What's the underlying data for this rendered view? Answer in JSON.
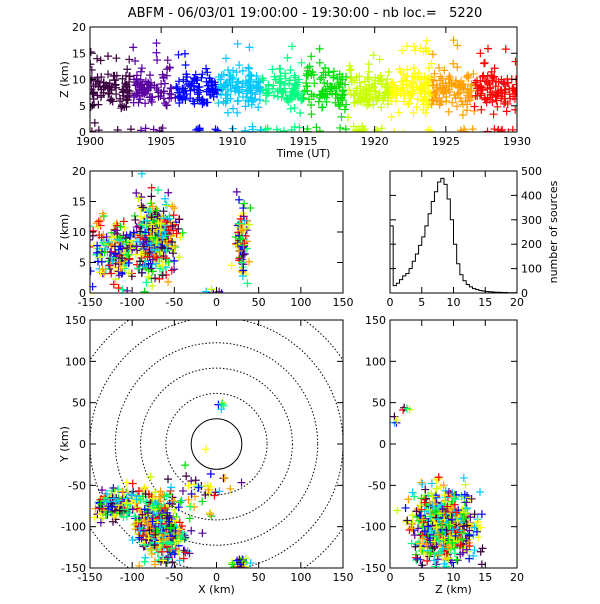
{
  "title": "ABFM - 06/03/01 19:00:00 - 19:30:00 - nb loc.=   5220",
  "chart_data": [
    {
      "id": "time-height",
      "type": "scatter",
      "xlabel": "Time (UT)",
      "ylabel": "Z (km)",
      "xlim": [
        1900,
        1930
      ],
      "ylim": [
        0,
        20
      ],
      "xticks": [
        "1900",
        "1905",
        "1910",
        "1915",
        "1920",
        "1925",
        "1930"
      ],
      "yticks": [
        "0",
        "5",
        "10",
        "15",
        "20"
      ],
      "color_scale": [
        "#3b0040",
        "#5a00a0",
        "#0000ff",
        "#00c8ff",
        "#00ff80",
        "#00e000",
        "#c8ff00",
        "#ffff00",
        "#ffa000",
        "#ff0000"
      ],
      "clusters": [
        {
          "x": 1915,
          "y": 8,
          "sx": 8.5,
          "sy": 1.8,
          "n": 900,
          "xmin": 1900,
          "xmax": 1930
        },
        {
          "x": 1915,
          "y": 0.4,
          "sx": 8,
          "sy": 0.3,
          "n": 70,
          "xmin": 1900,
          "xmax": 1930
        },
        {
          "x": 1915,
          "y": 13,
          "sx": 8,
          "sy": 2.5,
          "n": 70,
          "xmin": 1900,
          "xmax": 1930
        }
      ]
    },
    {
      "id": "x-z",
      "type": "scatter",
      "xlabel": "",
      "ylabel": "Z (km)",
      "xlim": [
        -150,
        150
      ],
      "ylim": [
        0,
        20
      ],
      "xticks": [
        "-150",
        "-100",
        "-50",
        "0",
        "50",
        "100",
        "150"
      ],
      "yticks": [
        "0",
        "5",
        "10",
        "15",
        "20"
      ],
      "clusters": [
        {
          "x": -70,
          "y": 9,
          "sx": 12,
          "sy": 3,
          "n": 320
        },
        {
          "x": -115,
          "y": 7,
          "sx": 17,
          "sy": 2.5,
          "n": 200
        },
        {
          "x": 30,
          "y": 8,
          "sx": 4,
          "sy": 3,
          "n": 70
        },
        {
          "x": -5,
          "y": 0.3,
          "sx": 4,
          "sy": 0.3,
          "n": 6
        }
      ]
    },
    {
      "id": "histogram",
      "type": "bar",
      "xlabel": "",
      "ylabel": "number of sources",
      "xlim": [
        0,
        20
      ],
      "ylim": [
        0,
        500
      ],
      "xticks": [
        "0",
        "5",
        "10",
        "15",
        "20"
      ],
      "yticks": [
        "0",
        "100",
        "200",
        "300",
        "400",
        "500"
      ],
      "bin_start": 0,
      "bin_width": 0.5,
      "values": [
        275,
        30,
        40,
        55,
        70,
        80,
        100,
        130,
        160,
        195,
        230,
        275,
        325,
        375,
        415,
        455,
        470,
        445,
        385,
        300,
        200,
        120,
        75,
        50,
        35,
        25,
        18,
        14,
        10,
        8,
        6,
        5,
        4,
        3,
        3,
        2,
        2,
        1,
        1,
        1
      ]
    },
    {
      "id": "x-y",
      "type": "scatter",
      "xlabel": "X (km)",
      "ylabel": "Y (km)",
      "xlim": [
        -150,
        150
      ],
      "ylim": [
        -150,
        150
      ],
      "xticks": [
        "-150",
        "-100",
        "-50",
        "0",
        "50",
        "100",
        "150"
      ],
      "yticks": [
        "-150",
        "-100",
        "-50",
        "0",
        "50",
        "100",
        "150"
      ],
      "range_rings_km": [
        30,
        60,
        90,
        120,
        150,
        180,
        210
      ],
      "clusters": [
        {
          "x": -118,
          "y": -75,
          "sx": 12,
          "sy": 10,
          "n": 150
        },
        {
          "x": -72,
          "y": -95,
          "sx": 13,
          "sy": 22,
          "n": 280
        },
        {
          "x": -55,
          "y": -120,
          "sx": 10,
          "sy": 15,
          "n": 120
        },
        {
          "x": 30,
          "y": -145,
          "sx": 5,
          "sy": 5,
          "n": 40
        },
        {
          "x": 5,
          "y": 45,
          "sx": 3,
          "sy": 5,
          "n": 5
        },
        {
          "x": -20,
          "y": -60,
          "sx": 20,
          "sy": 15,
          "n": 40
        }
      ]
    },
    {
      "id": "z-y",
      "type": "scatter",
      "xlabel": "Z (km)",
      "ylabel": "",
      "xlim": [
        0,
        20
      ],
      "ylim": [
        -150,
        150
      ],
      "xticks": [
        "0",
        "5",
        "10",
        "15",
        "20"
      ],
      "yticks": [
        "-150",
        "-100",
        "-50",
        "0",
        "50",
        "100",
        "150"
      ],
      "clusters": [
        {
          "x": 8.5,
          "y": -100,
          "sx": 2.5,
          "sy": 22,
          "n": 550
        },
        {
          "x": 1,
          "y": 30,
          "sx": 0.3,
          "sy": 3,
          "n": 4
        },
        {
          "x": 3,
          "y": 40,
          "sx": 0.6,
          "sy": 5,
          "n": 4
        }
      ]
    }
  ]
}
